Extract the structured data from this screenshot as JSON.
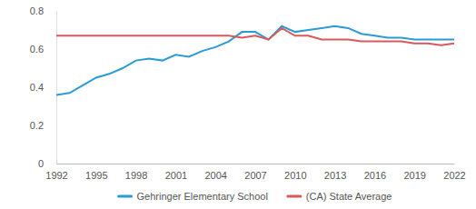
{
  "chart_data": {
    "type": "line",
    "x": [
      1992,
      1993,
      1994,
      1995,
      1996,
      1997,
      1998,
      1999,
      2000,
      2001,
      2002,
      2003,
      2004,
      2005,
      2006,
      2007,
      2008,
      2009,
      2010,
      2011,
      2012,
      2013,
      2014,
      2015,
      2016,
      2017,
      2018,
      2019,
      2020,
      2021,
      2022
    ],
    "series": [
      {
        "name": "Gehringer Elementary School",
        "color": "#2b9bd6",
        "values": [
          0.36,
          0.37,
          0.41,
          0.45,
          0.47,
          0.5,
          0.54,
          0.55,
          0.54,
          0.57,
          0.56,
          0.59,
          0.61,
          0.64,
          0.69,
          0.69,
          0.65,
          0.72,
          0.69,
          0.7,
          0.71,
          0.72,
          0.71,
          0.68,
          0.67,
          0.66,
          0.66,
          0.65,
          0.65,
          0.65,
          0.65
        ]
      },
      {
        "name": "(CA) State Average",
        "color": "#d9595a",
        "values": [
          0.67,
          0.67,
          0.67,
          0.67,
          0.67,
          0.67,
          0.67,
          0.67,
          0.67,
          0.67,
          0.67,
          0.67,
          0.67,
          0.67,
          0.66,
          0.67,
          0.65,
          0.71,
          0.67,
          0.67,
          0.65,
          0.65,
          0.65,
          0.64,
          0.64,
          0.64,
          0.64,
          0.63,
          0.63,
          0.62,
          0.63
        ]
      }
    ],
    "xlim": [
      1992,
      2022
    ],
    "xticks": [
      1992,
      1995,
      1998,
      2001,
      2004,
      2007,
      2010,
      2013,
      2016,
      2019,
      2022
    ],
    "ylim": [
      0,
      0.8
    ],
    "yticks": [
      0,
      0.2,
      0.4,
      0.6,
      0.8
    ],
    "grid": false,
    "legend": "bottom"
  }
}
